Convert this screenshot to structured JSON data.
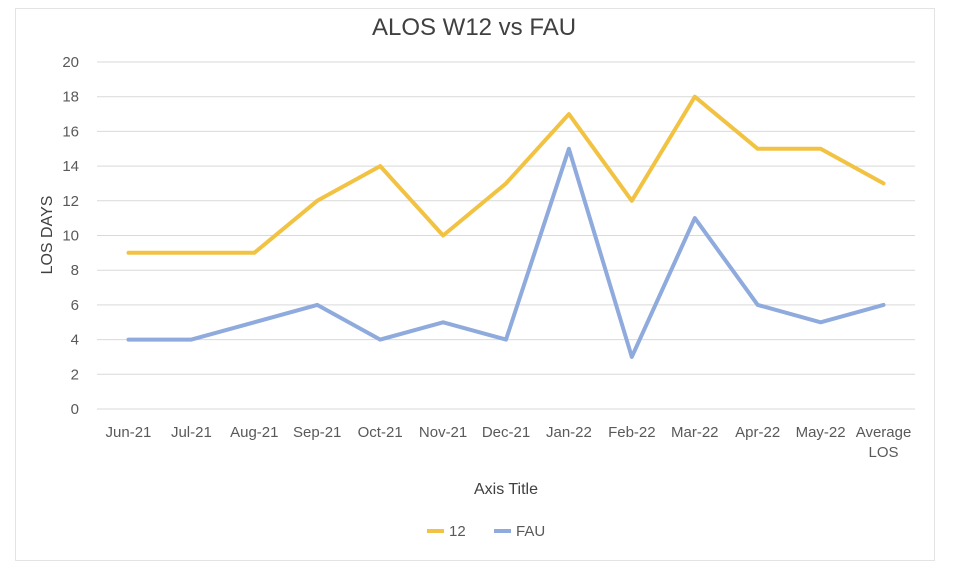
{
  "chart_data": {
    "type": "line",
    "title": "ALOS W12 vs FAU",
    "xlabel": "Axis Title",
    "ylabel": "LOS DAYS",
    "categories": [
      [
        "Jun-21"
      ],
      [
        "Jul-21"
      ],
      [
        "Aug-21"
      ],
      [
        "Sep-21"
      ],
      [
        "Oct-21"
      ],
      [
        "Nov-21"
      ],
      [
        "Dec-21"
      ],
      [
        "Jan-22"
      ],
      [
        "Feb-22"
      ],
      [
        "Mar-22"
      ],
      [
        "Apr-22"
      ],
      [
        "May-22"
      ],
      [
        "Average",
        "LOS"
      ]
    ],
    "ylim": [
      0,
      20
    ],
    "yticks": [
      0,
      2,
      4,
      6,
      8,
      10,
      12,
      14,
      16,
      18,
      20
    ],
    "grid": true,
    "legend_position": "bottom",
    "series": [
      {
        "name": "12",
        "color": "#F2C242",
        "values": [
          9,
          9,
          9,
          12,
          14,
          10,
          13,
          17,
          12,
          18,
          15,
          15,
          13
        ]
      },
      {
        "name": "FAU",
        "color": "#8FAADC",
        "values": [
          4,
          4,
          5,
          6,
          4,
          5,
          4,
          15,
          3,
          11,
          6,
          5,
          6
        ]
      }
    ]
  }
}
